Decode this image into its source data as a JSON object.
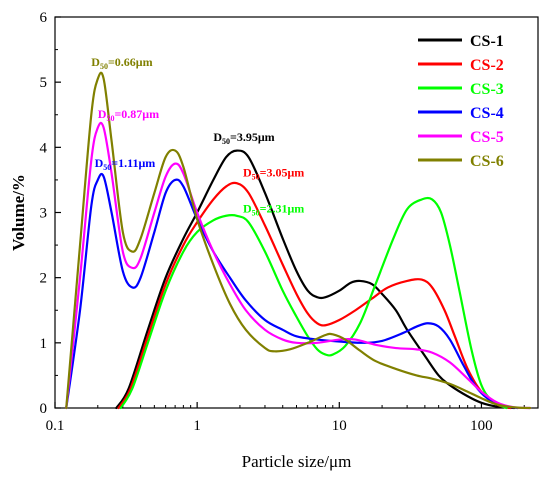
{
  "chart_data": {
    "type": "line",
    "xlabel": "Particle size/μm",
    "ylabel": "Volume/%",
    "xscale": "log",
    "xlim": [
      0.1,
      250
    ],
    "ylim": [
      0,
      6
    ],
    "x_ticks": [
      0.1,
      1,
      10,
      100
    ],
    "x_tick_labels": [
      "0.1",
      "1",
      "10",
      "100"
    ],
    "y_ticks": [
      0,
      1,
      2,
      3,
      4,
      5,
      6
    ],
    "y_tick_labels": [
      "0",
      "1",
      "2",
      "3",
      "4",
      "5",
      "6"
    ],
    "grid": false,
    "legend_position": "top-right",
    "series": [
      {
        "name": "CS-1",
        "color": "#000000",
        "points": [
          [
            0.27,
            0
          ],
          [
            0.33,
            0.3
          ],
          [
            0.45,
            1.2
          ],
          [
            0.6,
            2.0
          ],
          [
            0.8,
            2.6
          ],
          [
            1.0,
            3.0
          ],
          [
            1.3,
            3.5
          ],
          [
            1.6,
            3.85
          ],
          [
            1.9,
            3.95
          ],
          [
            2.3,
            3.85
          ],
          [
            3,
            3.3
          ],
          [
            4,
            2.6
          ],
          [
            5,
            2.1
          ],
          [
            6,
            1.8
          ],
          [
            7,
            1.7
          ],
          [
            8,
            1.7
          ],
          [
            10,
            1.8
          ],
          [
            12,
            1.92
          ],
          [
            14,
            1.95
          ],
          [
            17,
            1.9
          ],
          [
            20,
            1.75
          ],
          [
            25,
            1.5
          ],
          [
            30,
            1.2
          ],
          [
            40,
            0.8
          ],
          [
            50,
            0.5
          ],
          [
            60,
            0.35
          ],
          [
            80,
            0.18
          ],
          [
            100,
            0.08
          ],
          [
            130,
            0.02
          ],
          [
            170,
            0
          ]
        ]
      },
      {
        "name": "CS-2",
        "color": "#ff0000",
        "points": [
          [
            0.28,
            0
          ],
          [
            0.34,
            0.3
          ],
          [
            0.45,
            1.1
          ],
          [
            0.6,
            1.9
          ],
          [
            0.8,
            2.5
          ],
          [
            1.0,
            2.85
          ],
          [
            1.3,
            3.2
          ],
          [
            1.6,
            3.4
          ],
          [
            1.9,
            3.45
          ],
          [
            2.3,
            3.3
          ],
          [
            3,
            2.8
          ],
          [
            4,
            2.2
          ],
          [
            5,
            1.75
          ],
          [
            6,
            1.45
          ],
          [
            7,
            1.3
          ],
          [
            8,
            1.27
          ],
          [
            10,
            1.35
          ],
          [
            13,
            1.5
          ],
          [
            17,
            1.68
          ],
          [
            22,
            1.85
          ],
          [
            30,
            1.95
          ],
          [
            38,
            1.97
          ],
          [
            45,
            1.85
          ],
          [
            55,
            1.5
          ],
          [
            65,
            1.1
          ],
          [
            80,
            0.6
          ],
          [
            100,
            0.25
          ],
          [
            130,
            0.05
          ],
          [
            160,
            0
          ]
        ]
      },
      {
        "name": "CS-3",
        "color": "#00ff00",
        "points": [
          [
            0.29,
            0
          ],
          [
            0.35,
            0.3
          ],
          [
            0.45,
            1.0
          ],
          [
            0.6,
            1.8
          ],
          [
            0.8,
            2.4
          ],
          [
            1.0,
            2.7
          ],
          [
            1.3,
            2.88
          ],
          [
            1.6,
            2.95
          ],
          [
            1.9,
            2.95
          ],
          [
            2.3,
            2.85
          ],
          [
            3,
            2.4
          ],
          [
            4,
            1.8
          ],
          [
            5,
            1.4
          ],
          [
            6,
            1.1
          ],
          [
            7,
            0.9
          ],
          [
            8,
            0.82
          ],
          [
            9,
            0.82
          ],
          [
            11,
            0.95
          ],
          [
            14,
            1.3
          ],
          [
            18,
            1.9
          ],
          [
            24,
            2.6
          ],
          [
            30,
            3.05
          ],
          [
            38,
            3.2
          ],
          [
            45,
            3.2
          ],
          [
            52,
            3.0
          ],
          [
            60,
            2.5
          ],
          [
            70,
            1.8
          ],
          [
            85,
            0.9
          ],
          [
            100,
            0.35
          ],
          [
            120,
            0.1
          ],
          [
            150,
            0
          ]
        ]
      },
      {
        "name": "CS-4",
        "color": "#0000ff",
        "points": [
          [
            0.12,
            0
          ],
          [
            0.15,
            1.5
          ],
          [
            0.18,
            3.1
          ],
          [
            0.2,
            3.5
          ],
          [
            0.22,
            3.55
          ],
          [
            0.25,
            3.0
          ],
          [
            0.3,
            2.1
          ],
          [
            0.35,
            1.85
          ],
          [
            0.4,
            2.0
          ],
          [
            0.5,
            2.7
          ],
          [
            0.6,
            3.3
          ],
          [
            0.7,
            3.5
          ],
          [
            0.8,
            3.4
          ],
          [
            1.0,
            2.9
          ],
          [
            1.3,
            2.4
          ],
          [
            1.7,
            2.0
          ],
          [
            2.2,
            1.65
          ],
          [
            3,
            1.35
          ],
          [
            4,
            1.2
          ],
          [
            5,
            1.1
          ],
          [
            7,
            1.05
          ],
          [
            10,
            1.02
          ],
          [
            15,
            1.0
          ],
          [
            20,
            1.03
          ],
          [
            28,
            1.15
          ],
          [
            35,
            1.25
          ],
          [
            42,
            1.3
          ],
          [
            50,
            1.25
          ],
          [
            60,
            1.05
          ],
          [
            75,
            0.65
          ],
          [
            90,
            0.35
          ],
          [
            110,
            0.15
          ],
          [
            140,
            0.04
          ],
          [
            180,
            0
          ]
        ]
      },
      {
        "name": "CS-5",
        "color": "#ff00ff",
        "points": [
          [
            0.12,
            0
          ],
          [
            0.15,
            2.0
          ],
          [
            0.18,
            3.8
          ],
          [
            0.2,
            4.3
          ],
          [
            0.22,
            4.3
          ],
          [
            0.25,
            3.6
          ],
          [
            0.3,
            2.4
          ],
          [
            0.35,
            2.15
          ],
          [
            0.4,
            2.3
          ],
          [
            0.5,
            3.0
          ],
          [
            0.6,
            3.55
          ],
          [
            0.7,
            3.75
          ],
          [
            0.8,
            3.6
          ],
          [
            1.0,
            3.0
          ],
          [
            1.3,
            2.4
          ],
          [
            1.7,
            1.9
          ],
          [
            2.2,
            1.5
          ],
          [
            3,
            1.2
          ],
          [
            4,
            1.05
          ],
          [
            5,
            1.0
          ],
          [
            7,
            1.0
          ],
          [
            10,
            1.05
          ],
          [
            13,
            1.05
          ],
          [
            18,
            0.97
          ],
          [
            25,
            0.92
          ],
          [
            35,
            0.9
          ],
          [
            45,
            0.85
          ],
          [
            60,
            0.7
          ],
          [
            80,
            0.45
          ],
          [
            100,
            0.25
          ],
          [
            130,
            0.08
          ],
          [
            170,
            0.01
          ],
          [
            220,
            0
          ]
        ]
      },
      {
        "name": "CS-6",
        "color": "#808000",
        "points": [
          [
            0.12,
            0
          ],
          [
            0.15,
            2.5
          ],
          [
            0.18,
            4.5
          ],
          [
            0.2,
            5.05
          ],
          [
            0.22,
            5.05
          ],
          [
            0.25,
            4.1
          ],
          [
            0.3,
            2.7
          ],
          [
            0.35,
            2.4
          ],
          [
            0.4,
            2.6
          ],
          [
            0.5,
            3.3
          ],
          [
            0.6,
            3.85
          ],
          [
            0.7,
            3.95
          ],
          [
            0.8,
            3.7
          ],
          [
            1.0,
            2.9
          ],
          [
            1.3,
            2.2
          ],
          [
            1.7,
            1.6
          ],
          [
            2.2,
            1.2
          ],
          [
            3,
            0.92
          ],
          [
            3.5,
            0.87
          ],
          [
            4.5,
            0.9
          ],
          [
            6,
            1.0
          ],
          [
            8,
            1.12
          ],
          [
            9,
            1.13
          ],
          [
            11,
            1.05
          ],
          [
            14,
            0.88
          ],
          [
            18,
            0.72
          ],
          [
            25,
            0.6
          ],
          [
            35,
            0.5
          ],
          [
            45,
            0.45
          ],
          [
            60,
            0.37
          ],
          [
            80,
            0.25
          ],
          [
            100,
            0.15
          ],
          [
            130,
            0.05
          ],
          [
            170,
            0.01
          ],
          [
            220,
            0
          ]
        ]
      }
    ],
    "annotations": [
      {
        "label": "D",
        "sub": "50",
        "value": "=0.66μm",
        "color": "#808000",
        "x": 0.18,
        "y": 5.25
      },
      {
        "label": "D",
        "sub": "50",
        "value": "=0.87μm",
        "color": "#ff00ff",
        "x": 0.2,
        "y": 4.45
      },
      {
        "label": "D",
        "sub": "50",
        "value": "=1.11μm",
        "color": "#0000ff",
        "x": 0.19,
        "y": 3.7
      },
      {
        "label": "D",
        "sub": "50",
        "value": "=3.95μm",
        "color": "#000000",
        "x": 1.3,
        "y": 4.1
      },
      {
        "label": "D",
        "sub": "50",
        "value": "=3.05μm",
        "color": "#ff0000",
        "x": 2.1,
        "y": 3.55
      },
      {
        "label": "D",
        "sub": "50",
        "value": "=2.31μm",
        "color": "#00ff00",
        "x": 2.1,
        "y": 3.0
      }
    ]
  }
}
